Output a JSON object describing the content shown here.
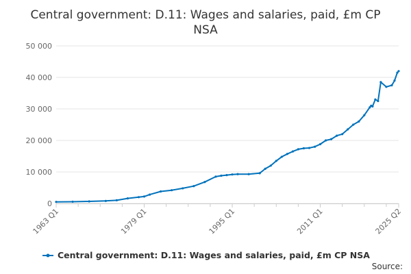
{
  "chart_data": {
    "type": "line",
    "title": "Central government: D.11: Wages and salaries, paid, £m CP NSA",
    "title_lines": [
      "Central government: D.11: Wages and salaries, paid, £m CP",
      "NSA"
    ],
    "xlabel": "",
    "ylabel": "",
    "ylim": [
      0,
      50000
    ],
    "y_ticks": [
      0,
      10000,
      20000,
      30000,
      40000,
      50000
    ],
    "y_tick_labels": [
      "0",
      "10 000",
      "20 000",
      "30 000",
      "40 000",
      "50 000"
    ],
    "x_tick_labels": [
      "1963 Q1",
      "1979 Q1",
      "1995 Q1",
      "2011 Q1",
      "2025 Q2"
    ],
    "x_tick_years": [
      1963.0,
      1979.0,
      1995.0,
      2011.0,
      2025.25
    ],
    "xlim": [
      1963.0,
      2025.25
    ],
    "grid": "horizontal",
    "legend_position": "bottom",
    "line_color": "#0072bc",
    "series": [
      {
        "name": "Central government: D.11: Wages and salaries, paid, £m CP NSA",
        "x": [
          1963,
          1966,
          1969,
          1972,
          1974,
          1976,
          1978,
          1979,
          1980,
          1982,
          1984,
          1986,
          1988,
          1990,
          1992,
          1993,
          1994,
          1995,
          1996,
          1998,
          2000,
          2001,
          2002,
          2003,
          2004,
          2005,
          2006,
          2007,
          2008,
          2009,
          2010,
          2011,
          2012,
          2013,
          2014,
          2015,
          2016,
          2017,
          2018,
          2019,
          2020,
          2020.25,
          2020.5,
          2021,
          2021.5,
          2022,
          2023,
          2024,
          2024.5,
          2025,
          2025.25
        ],
        "values": [
          500,
          550,
          650,
          800,
          1000,
          1600,
          2000,
          2200,
          2800,
          3800,
          4200,
          4800,
          5500,
          6800,
          8500,
          8800,
          9000,
          9200,
          9300,
          9300,
          9600,
          11000,
          12000,
          13500,
          14800,
          15700,
          16500,
          17200,
          17500,
          17600,
          18000,
          18800,
          20000,
          20400,
          21500,
          22000,
          23500,
          25000,
          26000,
          28000,
          30500,
          31000,
          30800,
          33000,
          32500,
          38500,
          37000,
          37500,
          39000,
          41500,
          42000
        ]
      }
    ]
  },
  "legend": {
    "label": "Central government: D.11: Wages and salaries, paid, £m CP NSA"
  },
  "source_label": "Source:"
}
